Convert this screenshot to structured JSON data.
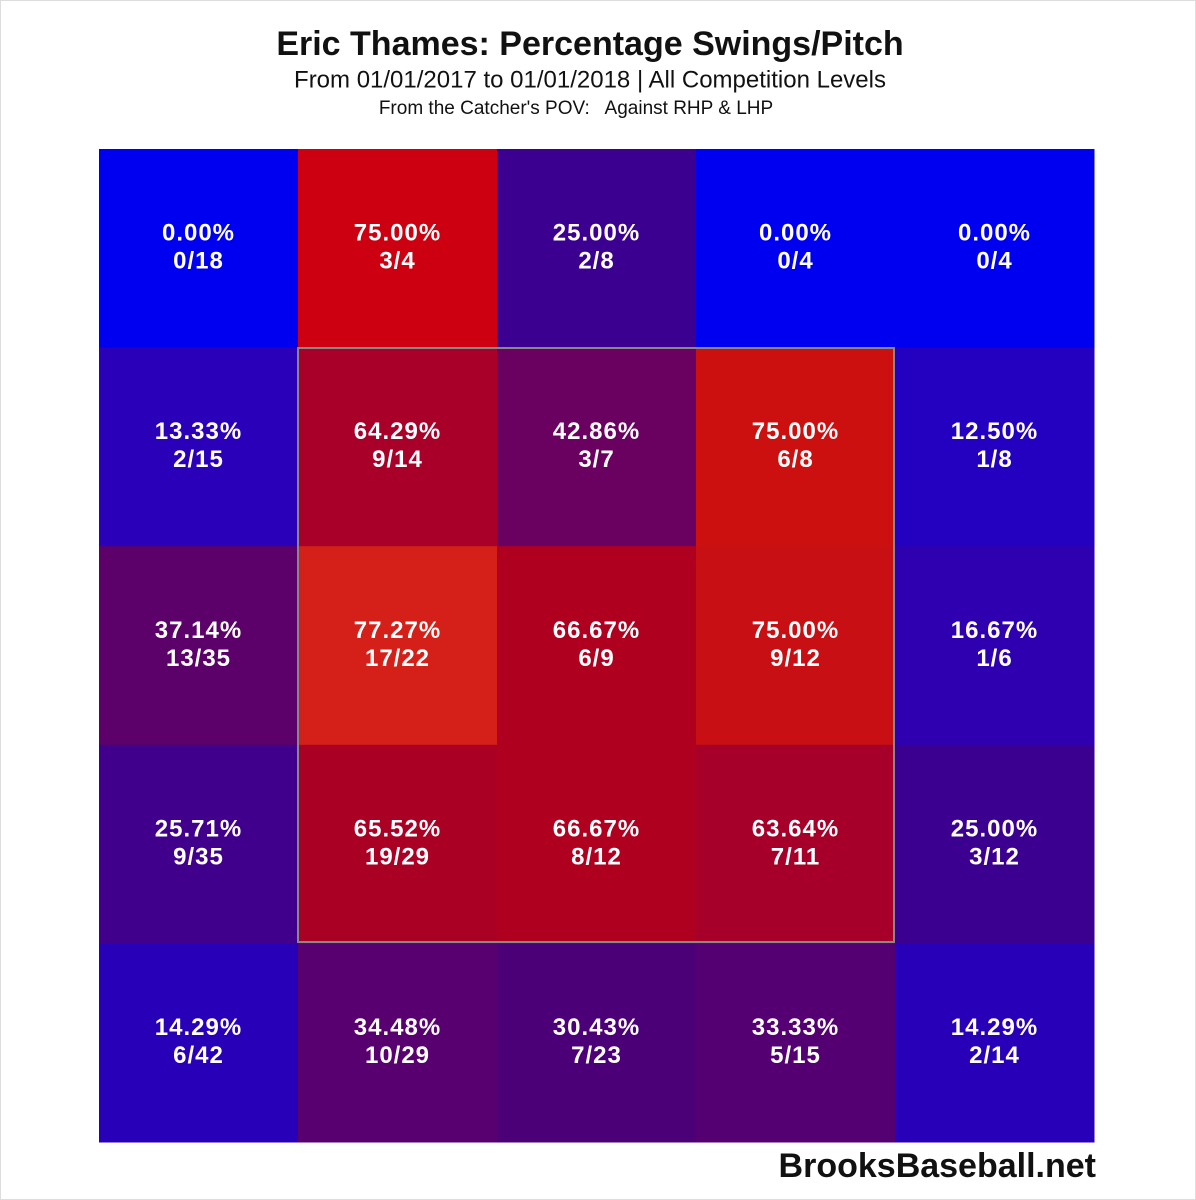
{
  "chart_data": {
    "type": "heatmap",
    "title": "Eric Thames: Percentage Swings/Pitch",
    "subtitle": "From 01/01/2017 to 01/01/2018 | All Competition Levels",
    "note": "From the Catcher's POV:   Against RHP & LHP",
    "source": "BrooksBaseball.net",
    "values": [
      [
        0,
        75,
        25,
        0,
        0
      ],
      [
        13.33,
        64.29,
        42.86,
        75,
        12.5
      ],
      [
        37.14,
        77.27,
        66.67,
        75,
        16.67
      ],
      [
        25.71,
        65.52,
        66.67,
        63.64,
        25
      ],
      [
        14.29,
        34.48,
        30.43,
        33.33,
        14.29
      ]
    ],
    "value_labels": [
      [
        "0.00%",
        "75.00%",
        "25.00%",
        "0.00%",
        "0.00%"
      ],
      [
        "13.33%",
        "64.29%",
        "42.86%",
        "75.00%",
        "12.50%"
      ],
      [
        "37.14%",
        "77.27%",
        "66.67%",
        "75.00%",
        "16.67%"
      ],
      [
        "25.71%",
        "65.52%",
        "66.67%",
        "63.64%",
        "25.00%"
      ],
      [
        "14.29%",
        "34.48%",
        "30.43%",
        "33.33%",
        "14.29%"
      ]
    ],
    "counts": [
      [
        "0/18",
        "3/4",
        "2/8",
        "0/4",
        "0/4"
      ],
      [
        "2/15",
        "9/14",
        "3/7",
        "6/8",
        "1/8"
      ],
      [
        "13/35",
        "17/22",
        "6/9",
        "9/12",
        "1/6"
      ],
      [
        "9/35",
        "19/29",
        "8/12",
        "7/11",
        "3/12"
      ],
      [
        "6/42",
        "10/29",
        "7/23",
        "5/15",
        "2/14"
      ]
    ],
    "colors": [
      [
        "#0000f0",
        "#cc0010",
        "#3c0090",
        "#0000f0",
        "#0000f0"
      ],
      [
        "#2a00b8",
        "#a80028",
        "#6a0060",
        "#cc1010",
        "#2400c0"
      ],
      [
        "#5c006a",
        "#d42018",
        "#b00020",
        "#c81014",
        "#2e00b0"
      ],
      [
        "#40008c",
        "#aa0024",
        "#b00020",
        "#a6002a",
        "#3c0090"
      ],
      [
        "#2800b8",
        "#580070",
        "#4c0078",
        "#540072",
        "#2800b8"
      ]
    ]
  }
}
